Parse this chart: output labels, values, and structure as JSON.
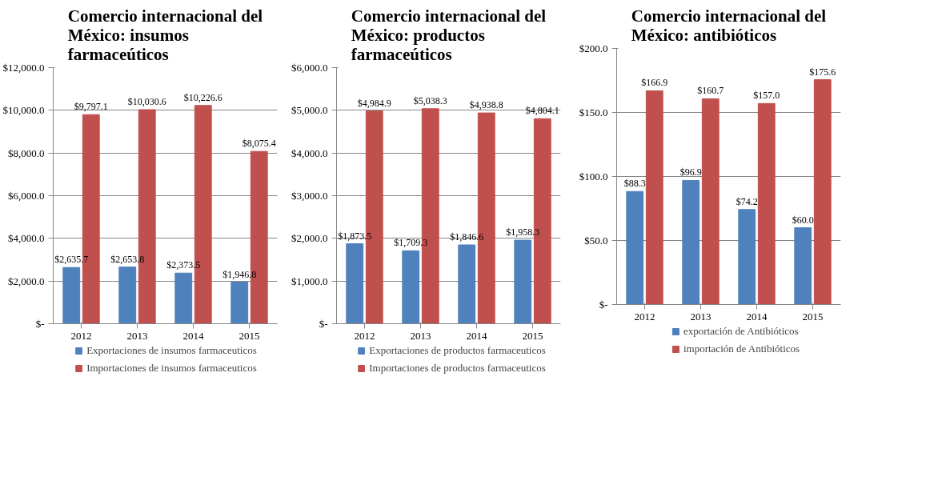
{
  "chart_data": [
    {
      "type": "bar",
      "title": "Comercio internacional del México: insumos farmaceúticos",
      "categories": [
        "2012",
        "2013",
        "2014",
        "2015"
      ],
      "ylim": [
        0,
        12000
      ],
      "yticks": [
        {
          "value": 0,
          "label": "$-"
        },
        {
          "value": 2000,
          "label": "$2,000.0"
        },
        {
          "value": 4000,
          "label": "$4,000.0"
        },
        {
          "value": 6000,
          "label": "$6,000.0"
        },
        {
          "value": 8000,
          "label": "$8,000.0"
        },
        {
          "value": 10000,
          "label": "$10,000.0"
        },
        {
          "value": 12000,
          "label": "$12,000.0"
        }
      ],
      "grid": "y",
      "legend": "bottom",
      "series": [
        {
          "name": "Exportaciones de insumos farmaceuticos",
          "color": "#4f81bd",
          "values": [
            2635.7,
            2653.8,
            2373.5,
            1946.8
          ],
          "value_labels": [
            "$2,635.7",
            "$2,653.8",
            "$2,373.5",
            "$1,946.8"
          ]
        },
        {
          "name": "Importaciones de insumos farmaceuticos",
          "color": "#c0504d",
          "values": [
            9797.1,
            10030.6,
            10226.6,
            8075.4
          ],
          "value_labels": [
            "$9,797.1",
            "$10,030.6",
            "$10,226.6",
            "$8,075.4"
          ]
        }
      ]
    },
    {
      "type": "bar",
      "title": "Comercio internacional del México: productos farmaceúticos",
      "categories": [
        "2012",
        "2013",
        "2014",
        "2015"
      ],
      "ylim": [
        0,
        6000
      ],
      "yticks": [
        {
          "value": 0,
          "label": "$-"
        },
        {
          "value": 1000,
          "label": "$1,000.0"
        },
        {
          "value": 2000,
          "label": "$2,000.0"
        },
        {
          "value": 3000,
          "label": "$3,000.0"
        },
        {
          "value": 4000,
          "label": "$4,000.0"
        },
        {
          "value": 5000,
          "label": "$5,000.0"
        },
        {
          "value": 6000,
          "label": "$6,000.0"
        }
      ],
      "grid": "y",
      "legend": "bottom",
      "series": [
        {
          "name": "Exportaciones de productos farmaceuticos",
          "color": "#4f81bd",
          "values": [
            1873.5,
            1709.3,
            1846.6,
            1958.3
          ],
          "value_labels": [
            "$1,873.5",
            "$1,709.3",
            "$1,846.6",
            "$1,958.3"
          ]
        },
        {
          "name": "Importaciones de productos farmaceuticos",
          "color": "#c0504d",
          "values": [
            4984.9,
            5038.3,
            4938.8,
            4804.1
          ],
          "value_labels": [
            "$4,984.9",
            "$5,038.3",
            "$4,938.8",
            "$4,804.1"
          ]
        }
      ]
    },
    {
      "type": "bar",
      "title": "Comercio internacional del México: antibióticos",
      "categories": [
        "2012",
        "2013",
        "2014",
        "2015"
      ],
      "ylim": [
        0,
        200
      ],
      "yticks": [
        {
          "value": 0,
          "label": "$-"
        },
        {
          "value": 50,
          "label": "$50.0"
        },
        {
          "value": 100,
          "label": "$100.0"
        },
        {
          "value": 150,
          "label": "$150.0"
        },
        {
          "value": 200,
          "label": "$200.0"
        }
      ],
      "grid": "y",
      "legend": "bottom",
      "series": [
        {
          "name": "exportación de Antibióticos",
          "color": "#4f81bd",
          "values": [
            88.3,
            96.9,
            74.2,
            60.0
          ],
          "value_labels": [
            "$88.3",
            "$96.9",
            "$74.2",
            "$60.0"
          ]
        },
        {
          "name": "importación de Antibióticos",
          "color": "#c0504d",
          "values": [
            166.9,
            160.7,
            157.0,
            175.6
          ],
          "value_labels": [
            "$166.9",
            "$160.7",
            "$157.0",
            "$175.6"
          ]
        }
      ]
    }
  ]
}
